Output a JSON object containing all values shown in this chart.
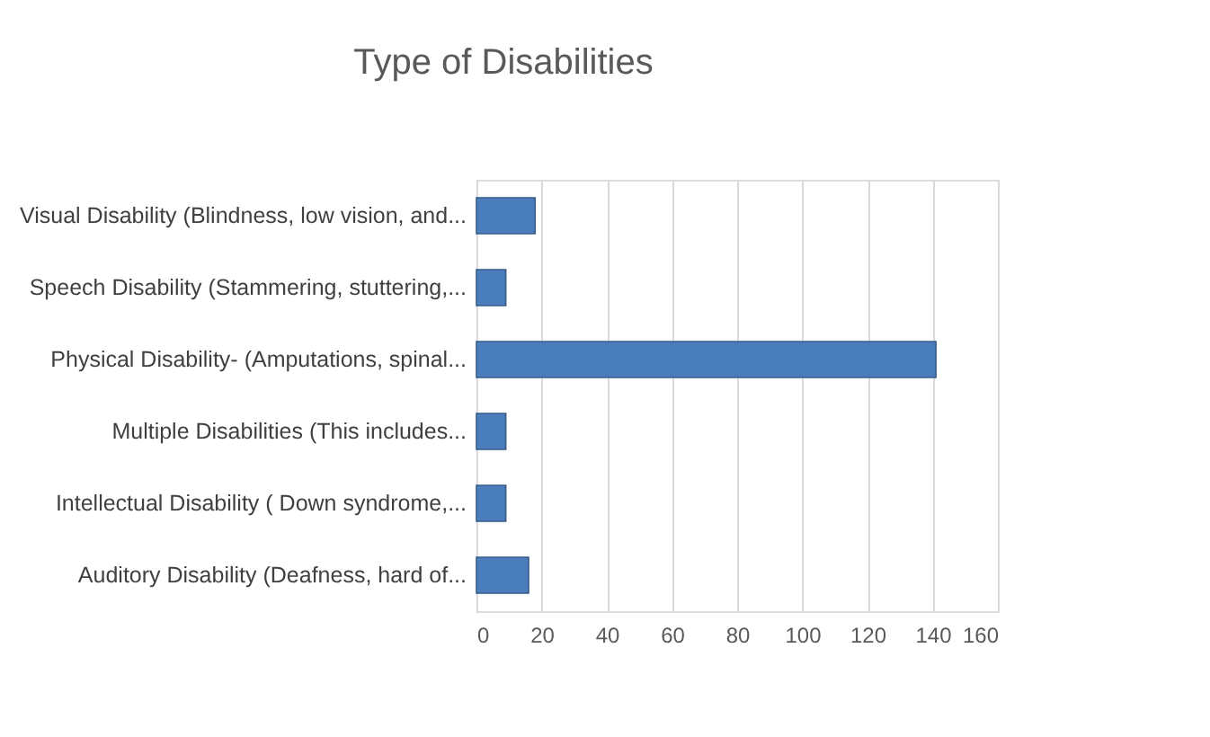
{
  "chart_data": {
    "type": "bar",
    "orientation": "horizontal",
    "title": "Type of Disabilities",
    "categories": [
      "Visual Disability (Blindness, low vision, and...",
      "Speech Disability (Stammering, stuttering,...",
      "Physical Disability- (Amputations, spinal...",
      "Multiple Disabilities (This includes...",
      "Intellectual Disability ( Down syndrome,...",
      "Auditory Disability (Deafness, hard of..."
    ],
    "values": [
      18,
      9,
      141,
      9,
      9,
      16
    ],
    "color": "#4a7ebb",
    "xlim": [
      0,
      160
    ],
    "xticks": [
      0,
      20,
      40,
      60,
      80,
      100,
      120,
      140,
      160
    ],
    "grid": "x"
  }
}
